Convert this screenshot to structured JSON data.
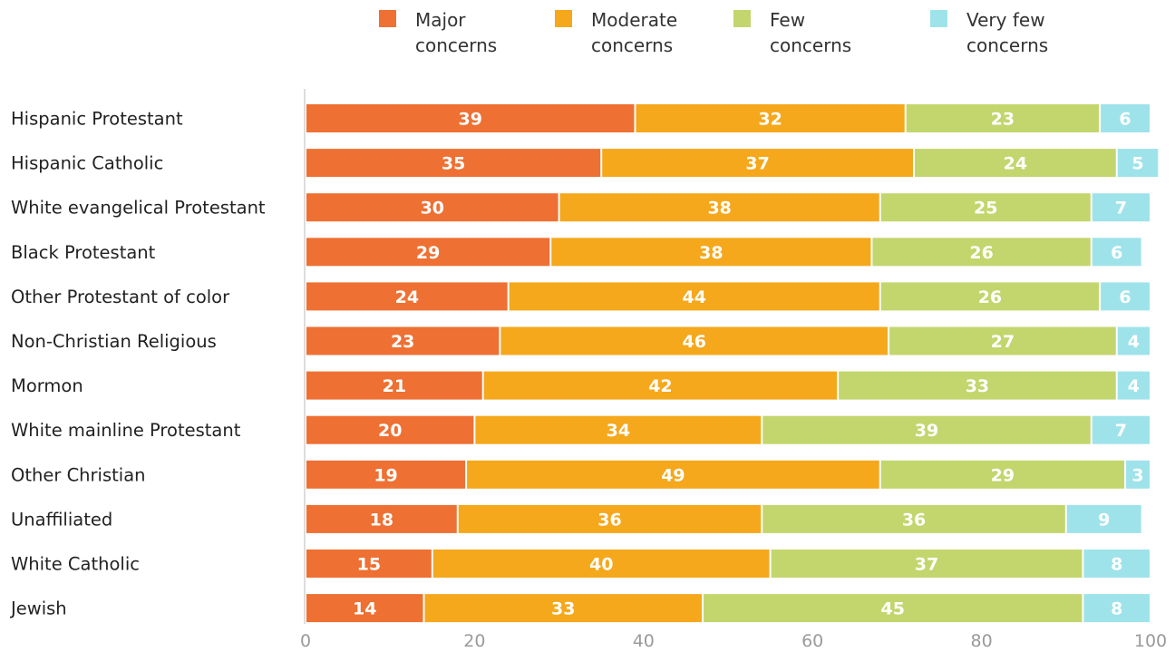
{
  "chart_data": {
    "type": "bar",
    "orientation": "horizontal",
    "stacked": true,
    "categories": [
      "Hispanic Protestant",
      "Hispanic Catholic",
      "White evangelical Protestant",
      "Black Protestant",
      "Other Protestant of color",
      "Non-Christian Religious",
      "Mormon",
      "White mainline Protestant",
      "Other Christian",
      "Unaffiliated",
      "White Catholic",
      "Jewish"
    ],
    "series": [
      {
        "name": "Major concerns",
        "legend_text": "Major\nconcerns",
        "color": "#ee7033",
        "values": [
          39,
          35,
          30,
          29,
          24,
          23,
          21,
          20,
          19,
          18,
          15,
          14
        ]
      },
      {
        "name": "Moderate concerns",
        "legend_text": "Moderate\nconcerns",
        "color": "#f5a81c",
        "values": [
          32,
          37,
          38,
          38,
          44,
          46,
          42,
          34,
          49,
          36,
          40,
          33
        ]
      },
      {
        "name": "Few concerns",
        "legend_text": "Few\nconcerns",
        "color": "#c2d66d",
        "values": [
          23,
          24,
          25,
          26,
          26,
          27,
          33,
          39,
          29,
          36,
          37,
          45
        ]
      },
      {
        "name": "Very few concerns",
        "legend_text": "Very few\nconcerns",
        "color": "#9fe3ea",
        "values": [
          6,
          5,
          7,
          6,
          6,
          4,
          4,
          7,
          3,
          9,
          8,
          8
        ]
      }
    ],
    "xlim": [
      0,
      100
    ],
    "xticks": [
      0,
      20,
      40,
      60,
      80,
      100
    ],
    "xtick_labels": [
      "0",
      "20",
      "40",
      "60",
      "80",
      "100"
    ],
    "grid": false,
    "legend_position": "top",
    "title": "",
    "xlabel": "",
    "ylabel": ""
  }
}
